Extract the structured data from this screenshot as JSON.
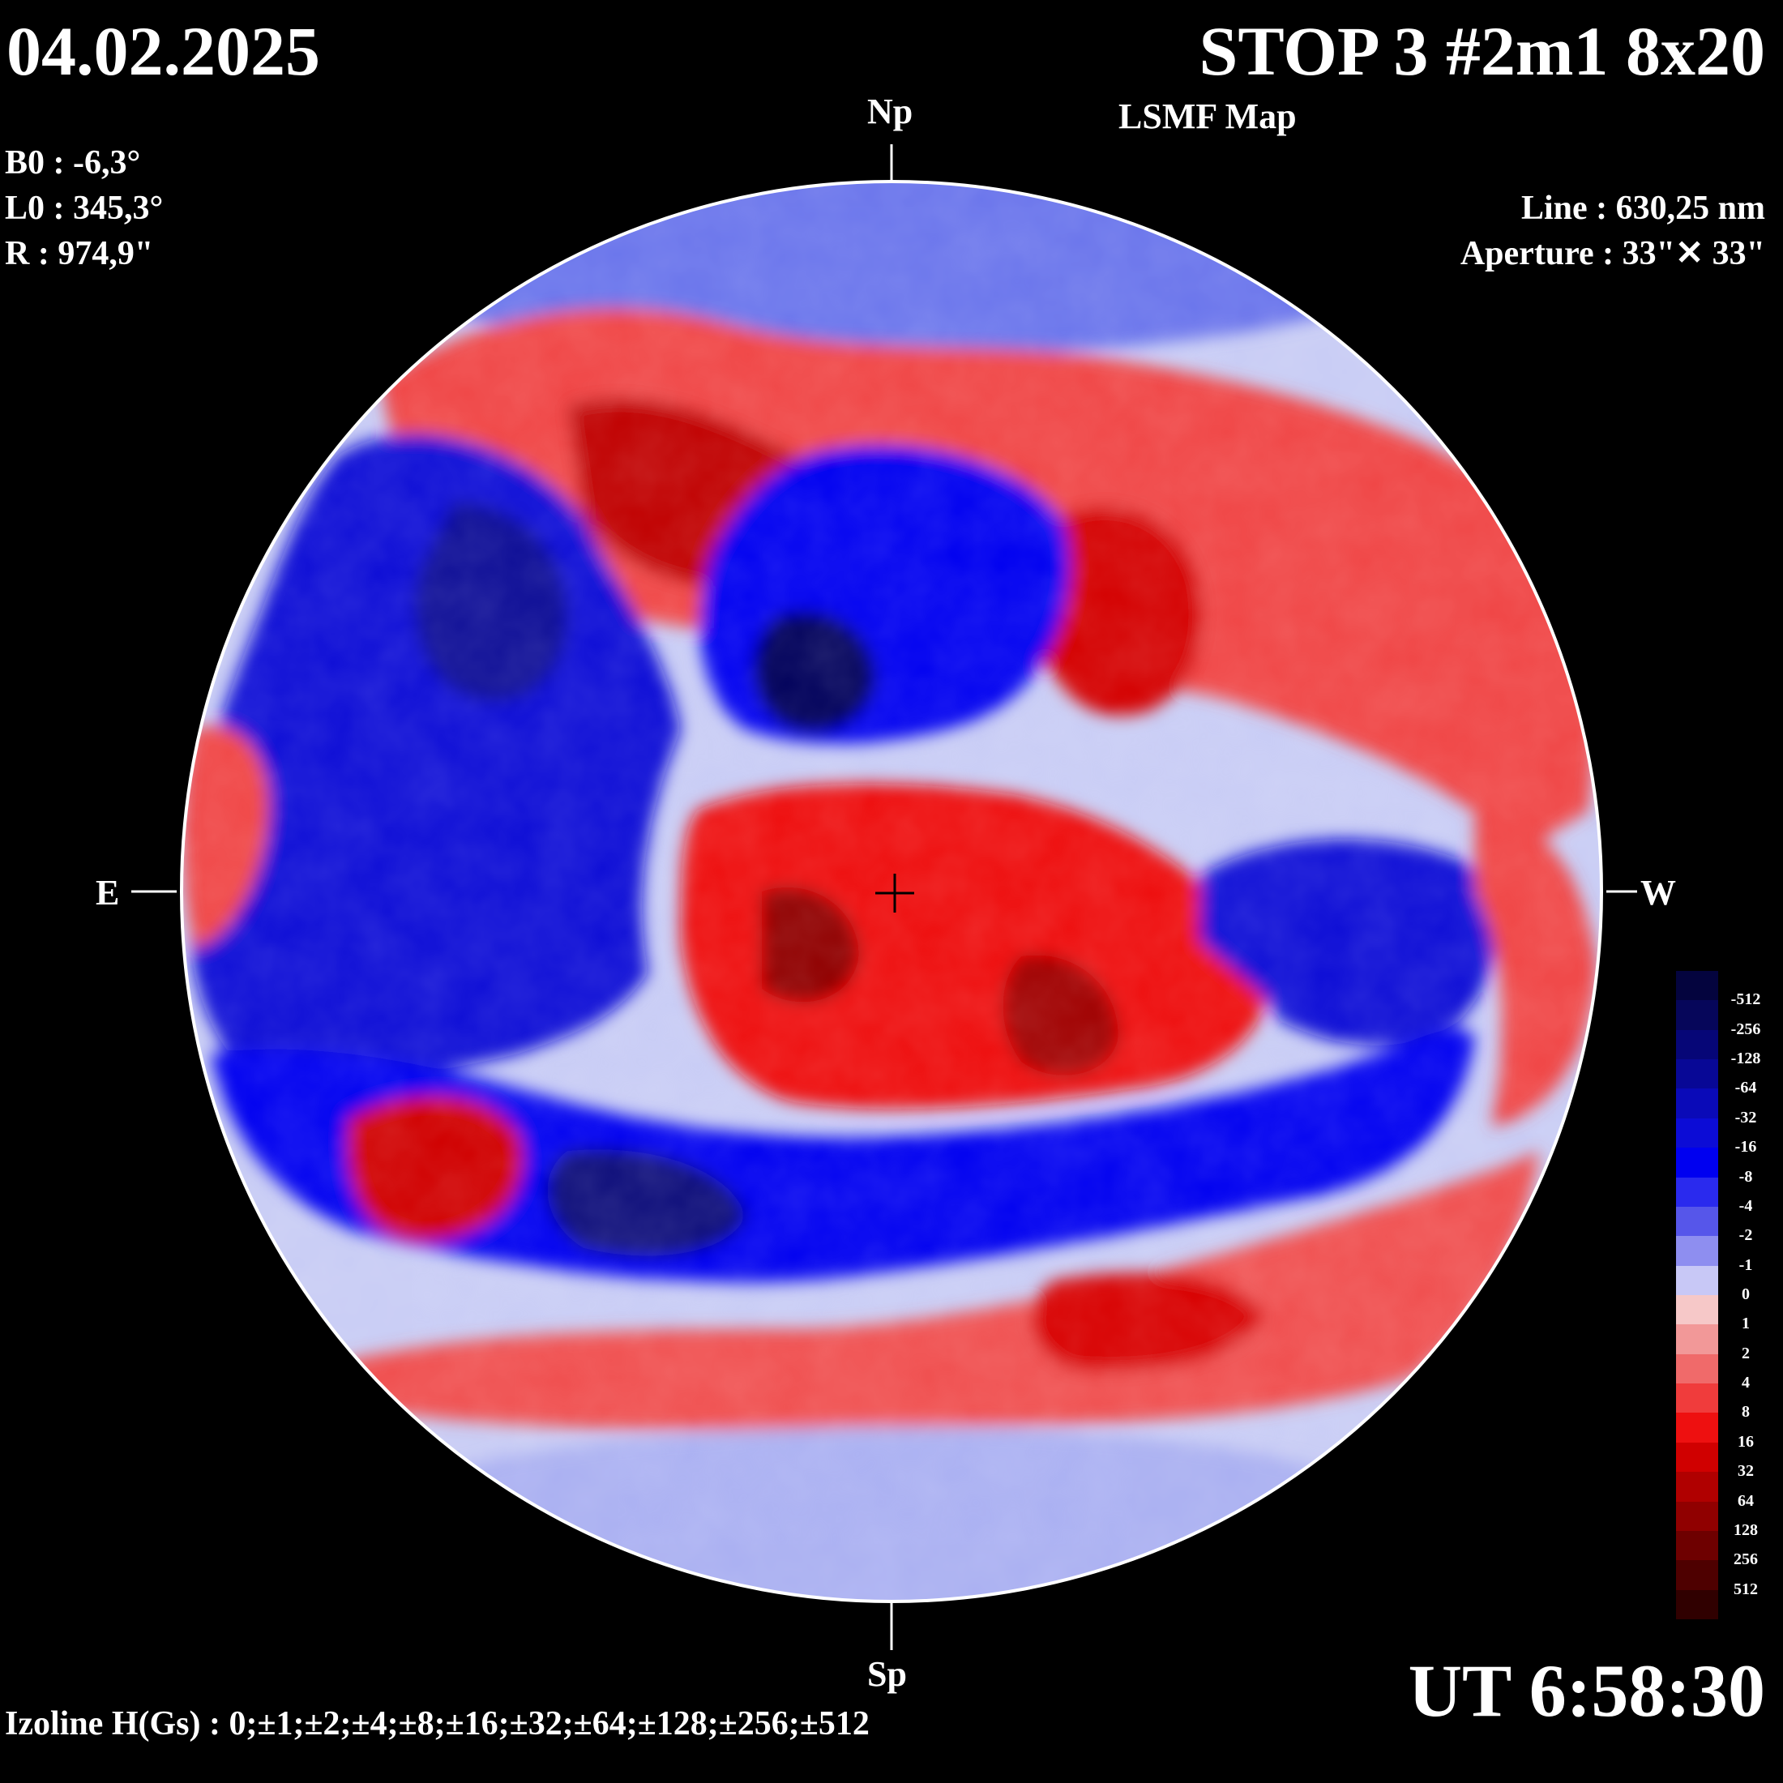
{
  "header": {
    "date": "04.02.2025",
    "title": "STOP 3 #2m1 8x20",
    "subtitle": "LSMF  Map"
  },
  "params": {
    "b0": "B0 : -6,3°",
    "l0": "L0 : 345,3°",
    "r": "R  : 974,9\""
  },
  "instrument": {
    "line": "Line :  630,25 nm",
    "aperture": "Aperture : 33\"✕ 33\""
  },
  "directions": {
    "north": "Np",
    "south": "Sp",
    "east": "E",
    "west": "W"
  },
  "footer": {
    "ut": "UT 6:58:30",
    "izoline": "Izoline H(Gs) : 0;±1;±2;±4;±8;±16;±32;±64;±128;±256;±512"
  },
  "colors": {
    "background": "#000000",
    "blue_strong": "#0000e6",
    "blue_deep": "#000080",
    "blue_mid": "#5560e6",
    "blue_light": "#c8ccf5",
    "red_light": "#f5c0c0",
    "red_mid": "#f04545",
    "red_strong": "#e60000",
    "red_deep": "#8b0000"
  },
  "colorbar": {
    "levels": [
      "-512",
      "-256",
      "-128",
      "-64",
      "-32",
      "-16",
      "-8",
      "-4",
      "-2",
      "-1",
      "0",
      "1",
      "2",
      "4",
      "8",
      "16",
      "32",
      "64",
      "128",
      "256",
      "512"
    ],
    "colors": [
      "#04043e",
      "#06065a",
      "#060677",
      "#080896",
      "#0a0ab8",
      "#0c0cd6",
      "#0000f0",
      "#2a2aee",
      "#5656ea",
      "#8e8ef0",
      "#c8c8f6",
      "#f6c8c8",
      "#f29898",
      "#f06a6a",
      "#f03c3c",
      "#ee1010",
      "#d00000",
      "#b00000",
      "#900000",
      "#6e0000",
      "#4e0000",
      "#300000"
    ]
  },
  "regions": [
    {
      "name": "west-positive-arc",
      "polarity": "positive"
    },
    {
      "name": "central-positive-region",
      "polarity": "positive"
    },
    {
      "name": "north-positive-band",
      "polarity": "positive"
    },
    {
      "name": "south-positive-band",
      "polarity": "positive"
    },
    {
      "name": "east-negative-region",
      "polarity": "negative"
    },
    {
      "name": "central-negative-cluster",
      "polarity": "negative"
    },
    {
      "name": "southern-negative-band",
      "polarity": "negative"
    },
    {
      "name": "west-negative-lobe",
      "polarity": "negative"
    }
  ]
}
